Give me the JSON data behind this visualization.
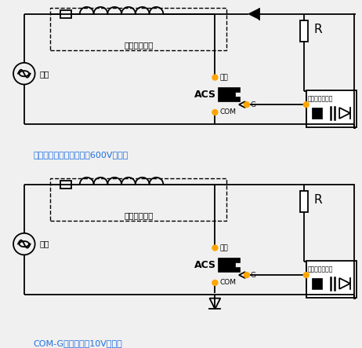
{
  "bg_color": "#f0f0f0",
  "line_color": "#000000",
  "orange_color": "#FFA500",
  "blue_color": "#1E6FE0",
  "label1": "光电双向晶闸管串联一个600V二极管",
  "label2": "COM-G结并联一个10V二极管",
  "text_dianlu": "电泵或门舱锁",
  "text_xianlu": "线路",
  "text_output": "输出",
  "text_com": "COM",
  "text_G": "G",
  "text_ACS": "ACS",
  "text_R": "R",
  "text_guangdian": "光电双向晶闸管",
  "lw": 1.3
}
